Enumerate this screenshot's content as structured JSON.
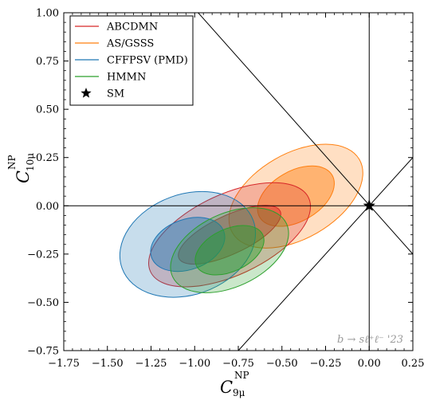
{
  "chart_data": {
    "type": "contour",
    "xlabel": {
      "main": "C",
      "sup": "NP",
      "sub": "9μ"
    },
    "ylabel": {
      "main": "C",
      "sup": "NP",
      "sub": "10μ"
    },
    "xlim": [
      -1.75,
      0.25
    ],
    "ylim": [
      -0.75,
      1.0
    ],
    "xticks": [
      -1.75,
      -1.5,
      -1.25,
      -1.0,
      -0.75,
      -0.5,
      -0.25,
      0.0,
      0.25
    ],
    "yticks": [
      -0.75,
      -0.5,
      -0.25,
      0.0,
      0.25,
      0.5,
      0.75,
      1.0
    ],
    "xtick_labels": [
      "−1.75",
      "−1.50",
      "−1.25",
      "−1.00",
      "−0.75",
      "−0.50",
      "−0.25",
      "0.00",
      "0.25"
    ],
    "ytick_labels": [
      "−0.75",
      "−0.50",
      "−0.25",
      "0.00",
      "0.25",
      "0.50",
      "0.75",
      "1.00"
    ],
    "annotation": "b → sℓ⁺ℓ⁻ '23",
    "legend_position": "top-left",
    "legend": [
      {
        "label": "ABCDMN",
        "color": "#d62728",
        "kind": "line"
      },
      {
        "label": "AS/GSSS",
        "color": "#ff7f0e",
        "kind": "line"
      },
      {
        "label": "CFFPSV (PMD)",
        "color": "#1f77b4",
        "kind": "line"
      },
      {
        "label": "HMMN",
        "color": "#2ca02c",
        "kind": "line"
      },
      {
        "label": "SM",
        "color": "#000000",
        "kind": "star"
      }
    ],
    "series": [
      {
        "name": "AS/GSSS",
        "color": "#ff7f0e",
        "center": [
          -0.42,
          0.05
        ],
        "one_sigma": {
          "rx": 0.24,
          "ry": 0.13,
          "angle": 30
        },
        "two_sigma": {
          "rx": 0.42,
          "ry": 0.22,
          "angle": 30
        }
      },
      {
        "name": "ABCDMN",
        "color": "#d62728",
        "center": [
          -0.8,
          -0.15
        ],
        "one_sigma": {
          "rx": 0.32,
          "ry": 0.1,
          "angle": 25
        },
        "two_sigma": {
          "rx": 0.5,
          "ry": 0.21,
          "angle": 25
        }
      },
      {
        "name": "CFFPSV (PMD)",
        "color": "#1f77b4",
        "center": [
          -1.04,
          -0.2
        ],
        "one_sigma": {
          "rx": 0.22,
          "ry": 0.13,
          "angle": 20
        },
        "two_sigma": {
          "rx": 0.4,
          "ry": 0.26,
          "angle": 20
        }
      },
      {
        "name": "HMMN",
        "color": "#2ca02c",
        "center": [
          -0.8,
          -0.23
        ],
        "one_sigma": {
          "rx": 0.21,
          "ry": 0.11,
          "angle": 25
        },
        "two_sigma": {
          "rx": 0.36,
          "ry": 0.19,
          "angle": 25
        }
      }
    ],
    "sm_point": [
      0.0,
      0.0
    ],
    "reference_lines": [
      {
        "orientation": "vertical",
        "x": 0.0
      },
      {
        "orientation": "horizontal",
        "y": 0.0
      },
      {
        "orientation": "line",
        "p1": [
          -0.98,
          1.0
        ],
        "p2": [
          0.25,
          -0.25
        ]
      },
      {
        "orientation": "line",
        "p1": [
          -0.75,
          -0.75
        ],
        "p2": [
          0.25,
          0.25
        ]
      }
    ]
  }
}
